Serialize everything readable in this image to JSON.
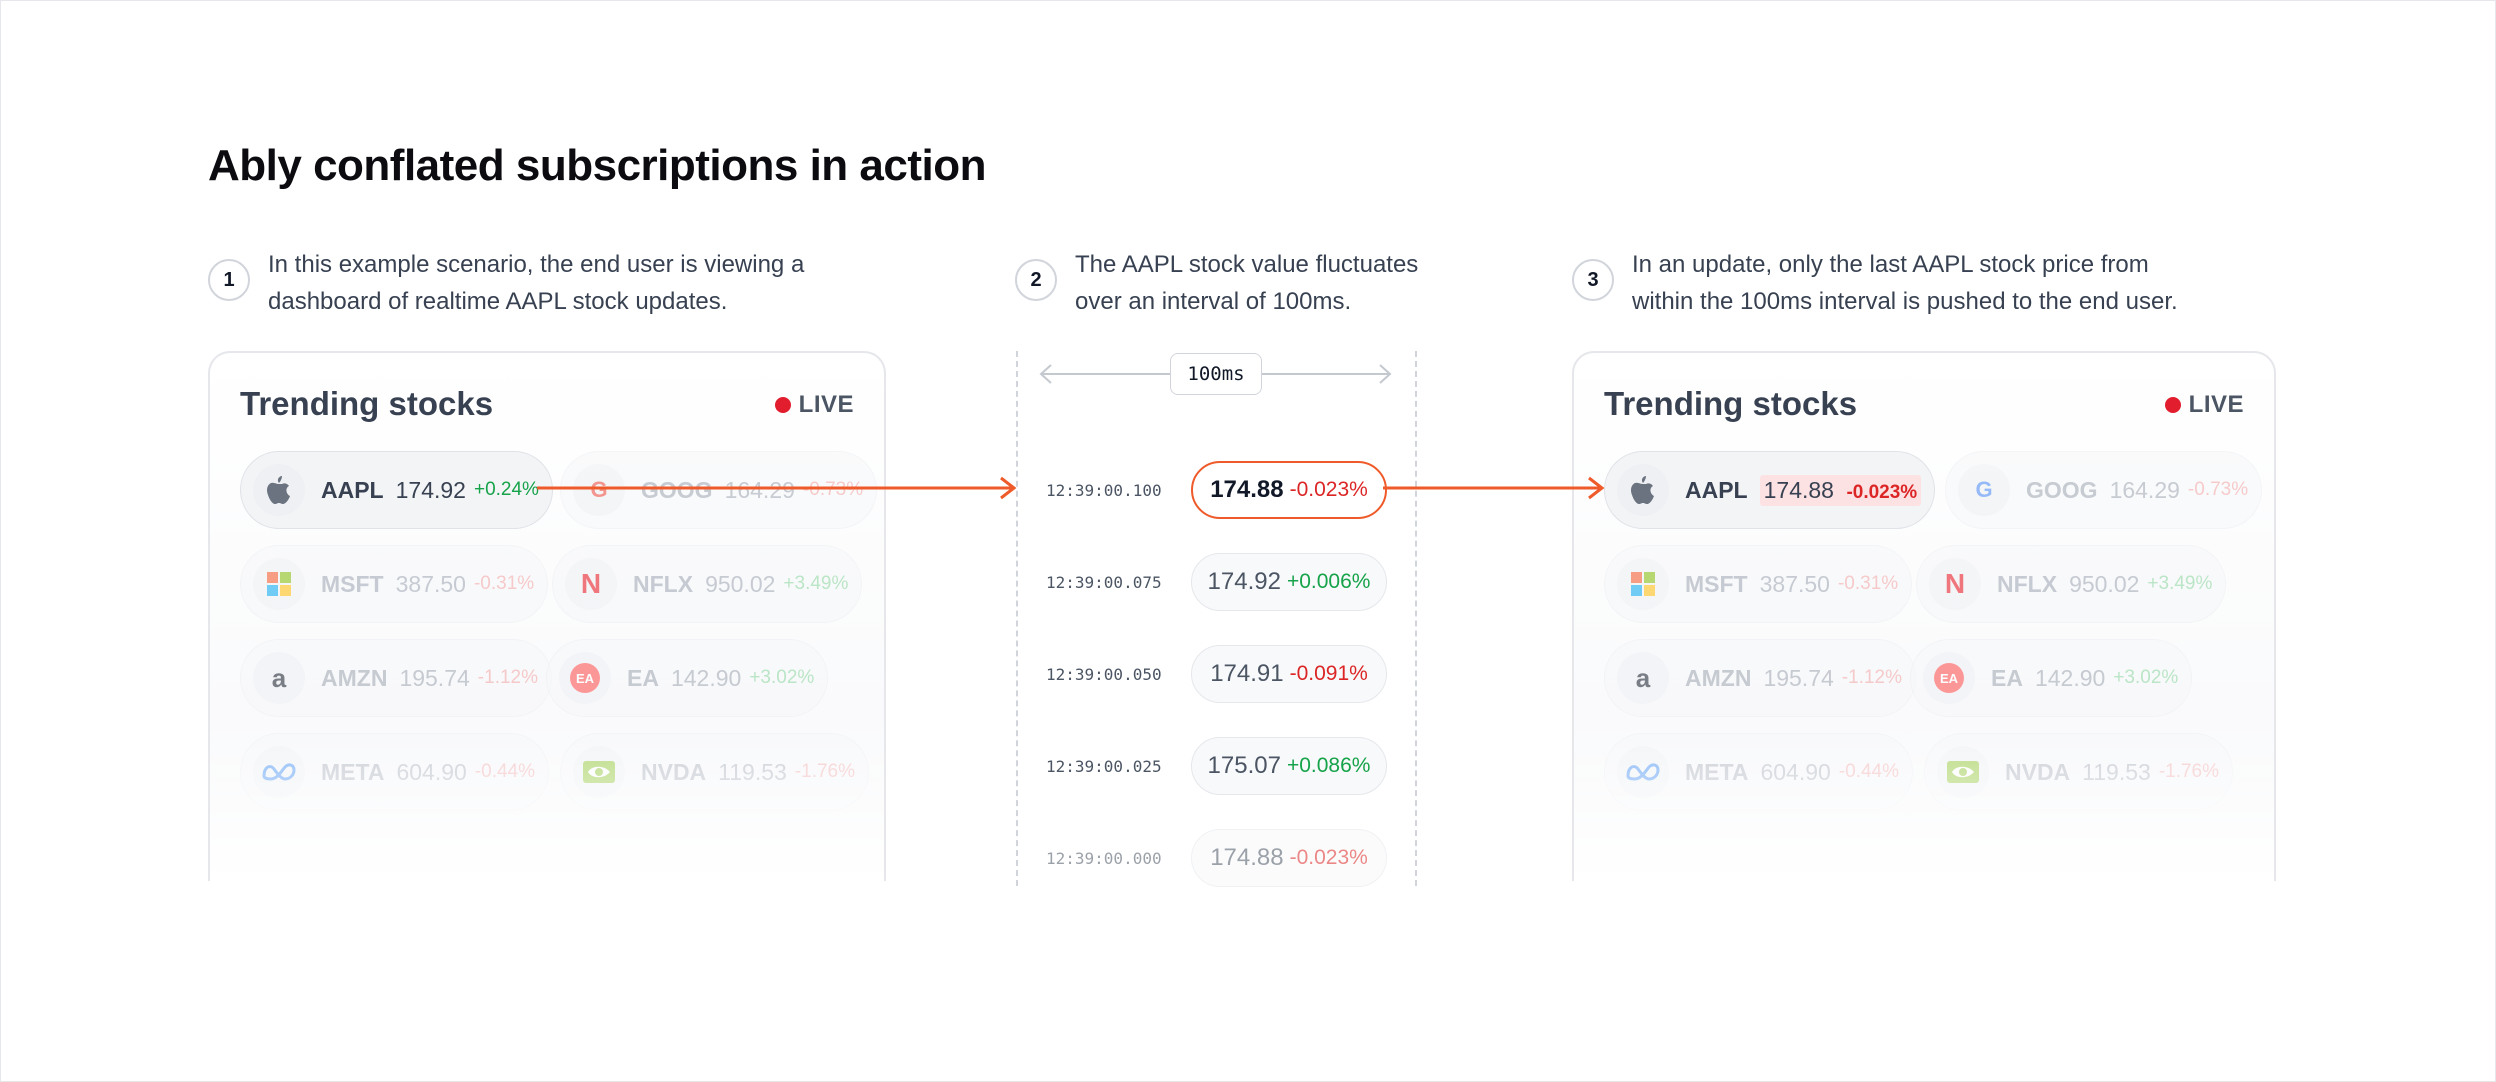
{
  "title": "Ably conflated subscriptions in action",
  "steps": [
    {
      "num": "1",
      "line1": "In this example scenario, the end user is viewing a",
      "line2": "dashboard of realtime AAPL stock updates."
    },
    {
      "num": "2",
      "line1": "The AAPL stock value fluctuates",
      "line2": "over an interval of 100ms."
    },
    {
      "num": "3",
      "line1": "In an update, only the last AAPL stock price from",
      "line2": "within the 100ms interval is pushed to the end user."
    }
  ],
  "card_left": {
    "title": "Trending stocks",
    "live": "LIVE",
    "stocks": [
      {
        "ticker": "AAPL",
        "price": "174.92",
        "change": "+0.24%",
        "logo": "apple-logo"
      },
      {
        "ticker": "GOOG",
        "price": "164.29",
        "change": "-0.73%",
        "logo": "google-logo"
      },
      {
        "ticker": "MSFT",
        "price": "387.50",
        "change": "-0.31%",
        "logo": "microsoft-logo"
      },
      {
        "ticker": "NFLX",
        "price": "950.02",
        "change": "+3.49%",
        "logo": "netflix-logo"
      },
      {
        "ticker": "AMZN",
        "price": "195.74",
        "change": "-1.12%",
        "logo": "amazon-logo"
      },
      {
        "ticker": "EA",
        "price": "142.90",
        "change": "+3.02%",
        "logo": "ea-logo"
      },
      {
        "ticker": "META",
        "price": "604.90",
        "change": "-0.44%",
        "logo": "meta-logo"
      },
      {
        "ticker": "NVDA",
        "price": "119.53",
        "change": "-1.76%",
        "logo": "nvidia-logo"
      }
    ]
  },
  "card_right": {
    "title": "Trending stocks",
    "live": "LIVE",
    "stocks": [
      {
        "ticker": "AAPL",
        "price": "174.88",
        "change": "-0.023%",
        "logo": "apple-logo"
      },
      {
        "ticker": "GOOG",
        "price": "164.29",
        "change": "-0.73%",
        "logo": "google-logo"
      },
      {
        "ticker": "MSFT",
        "price": "387.50",
        "change": "-0.31%",
        "logo": "microsoft-logo"
      },
      {
        "ticker": "NFLX",
        "price": "950.02",
        "change": "+3.49%",
        "logo": "netflix-logo"
      },
      {
        "ticker": "AMZN",
        "price": "195.74",
        "change": "-1.12%",
        "logo": "amazon-logo"
      },
      {
        "ticker": "EA",
        "price": "142.90",
        "change": "+3.02%",
        "logo": "ea-logo"
      },
      {
        "ticker": "META",
        "price": "604.90",
        "change": "-0.44%",
        "logo": "meta-logo"
      },
      {
        "ticker": "NVDA",
        "price": "119.53",
        "change": "-1.76%",
        "logo": "nvidia-logo"
      }
    ]
  },
  "interval": {
    "label": "100ms"
  },
  "timeline": [
    {
      "time": "12:39:00.100",
      "price": "174.88",
      "change": "-0.023%"
    },
    {
      "time": "12:39:00.075",
      "price": "174.92",
      "change": "+0.006%"
    },
    {
      "time": "12:39:00.050",
      "price": "174.91",
      "change": "-0.091%"
    },
    {
      "time": "12:39:00.025",
      "price": "175.07",
      "change": "+0.086%"
    },
    {
      "time": "12:39:00.000",
      "price": "174.88",
      "change": "-0.023%"
    }
  ],
  "colors": {
    "accent": "#ef5a2a",
    "live": "#e11d2e",
    "positive": "#16a34a",
    "negative": "#dc2626"
  }
}
